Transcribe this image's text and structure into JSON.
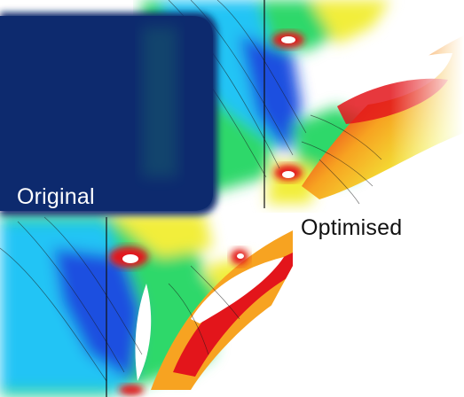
{
  "labels": {
    "original": "Original",
    "optimised": "Optimised"
  },
  "colors": {
    "panel_navy": "#0d2a6e",
    "contour_blue": "#1f4fe0",
    "contour_cyan": "#22c4f5",
    "contour_green": "#2fd86a",
    "contour_yellow": "#f2ee3a",
    "contour_orange": "#f7a321",
    "contour_red": "#e3151b",
    "background": "#ffffff"
  }
}
